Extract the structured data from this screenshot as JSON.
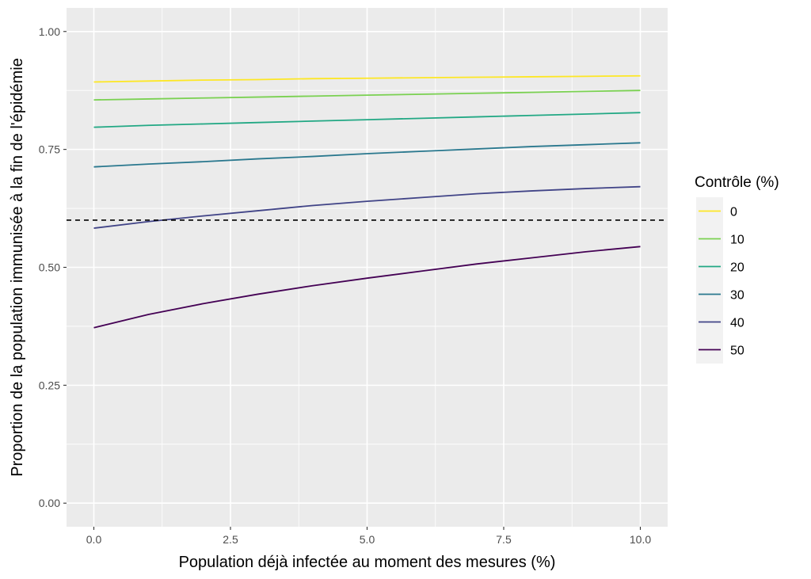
{
  "chart_data": {
    "type": "line",
    "title": "",
    "xlabel": "Population déjà infectée au moment des mesures (%)",
    "ylabel": "Proportion de la population immunisée à la fin de l'épidémie",
    "xlim": [
      -0.5,
      10.5
    ],
    "ylim": [
      -0.05,
      1.05
    ],
    "x_ticks": [
      0,
      2.5,
      5,
      7.5,
      10
    ],
    "x_tick_labels": [
      "0.0",
      "2.5",
      "5.0",
      "7.5",
      "10.0"
    ],
    "y_ticks": [
      0,
      0.25,
      0.5,
      0.75,
      1.0
    ],
    "y_tick_labels": [
      "0.00",
      "0.25",
      "0.50",
      "0.75",
      "1.00"
    ],
    "grid": true,
    "background": "#ebebeb",
    "legend": {
      "title": "Contrôle (%)",
      "position": "right"
    },
    "reference_line": {
      "y": 0.6,
      "style": "dashed",
      "color": "#000000"
    },
    "x": [
      0,
      1,
      2,
      3,
      4,
      5,
      6,
      7,
      8,
      9,
      10
    ],
    "series": [
      {
        "name": "0",
        "color": "#fde725",
        "values": [
          0.893,
          0.895,
          0.897,
          0.898,
          0.9,
          0.901,
          0.902,
          0.903,
          0.904,
          0.905,
          0.906
        ]
      },
      {
        "name": "10",
        "color": "#7ad151",
        "values": [
          0.855,
          0.857,
          0.859,
          0.861,
          0.863,
          0.865,
          0.867,
          0.869,
          0.871,
          0.873,
          0.875
        ]
      },
      {
        "name": "20",
        "color": "#22a884",
        "values": [
          0.797,
          0.801,
          0.804,
          0.807,
          0.81,
          0.813,
          0.816,
          0.819,
          0.822,
          0.825,
          0.828
        ]
      },
      {
        "name": "30",
        "color": "#2a788e",
        "values": [
          0.713,
          0.719,
          0.724,
          0.73,
          0.735,
          0.741,
          0.746,
          0.751,
          0.756,
          0.76,
          0.764
        ]
      },
      {
        "name": "40",
        "color": "#414487",
        "values": [
          0.583,
          0.597,
          0.609,
          0.62,
          0.631,
          0.64,
          0.648,
          0.656,
          0.662,
          0.667,
          0.671
        ]
      },
      {
        "name": "50",
        "color": "#440154",
        "values": [
          0.372,
          0.4,
          0.423,
          0.443,
          0.461,
          0.477,
          0.492,
          0.507,
          0.52,
          0.533,
          0.544
        ]
      }
    ]
  }
}
